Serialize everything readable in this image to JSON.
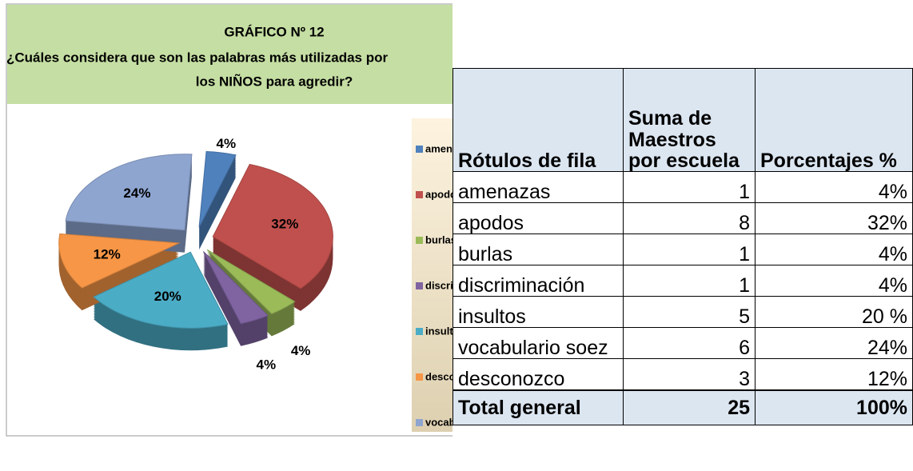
{
  "chart_data": {
    "type": "pie",
    "title": "GRÁFICO Nº 12",
    "subtitle": [
      "¿Cuáles considera que son las palabras más utilizadas por",
      "los NIÑOS para agredir?"
    ],
    "categories": [
      "amenazas",
      "apodos",
      "burlas",
      "discriminación",
      "insultos",
      "desconozco",
      "vocabulario soez"
    ],
    "values": [
      4,
      32,
      4,
      4,
      20,
      12,
      24
    ],
    "value_labels": [
      "4%",
      "32%",
      "4%",
      "4%",
      "20%",
      "12%",
      "24%"
    ],
    "colors": [
      "#4f81bd",
      "#c0504d",
      "#9bbb59",
      "#8064a2",
      "#4bacc6",
      "#f79646",
      "#8ea5d0"
    ],
    "legend": "right"
  },
  "table": {
    "header": [
      "Rótulos de fila",
      "Suma de Maestros por escuela",
      "Porcentajes %"
    ],
    "rows": [
      [
        "amenazas",
        1,
        "4%"
      ],
      [
        "apodos",
        8,
        "32%"
      ],
      [
        "burlas",
        1,
        "4%"
      ],
      [
        "discriminación",
        1,
        "4%"
      ],
      [
        "insultos",
        5,
        "20 %"
      ],
      [
        "vocabulario soez",
        6,
        "24%"
      ],
      [
        "desconozco",
        3,
        "12%"
      ]
    ],
    "total": [
      "Total general",
      25,
      "100%"
    ]
  }
}
